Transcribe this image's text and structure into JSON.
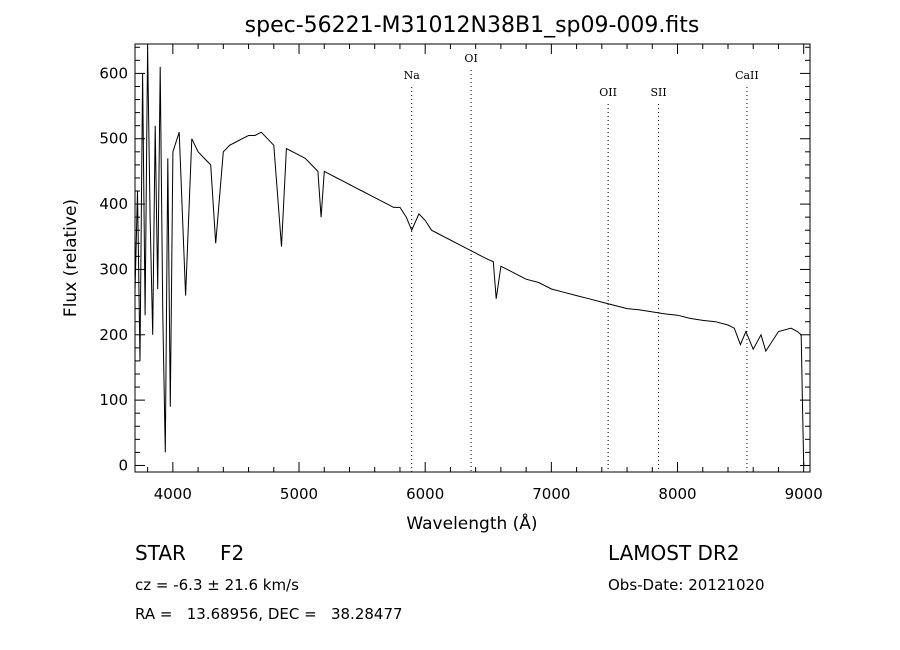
{
  "chart_data": {
    "type": "line",
    "title": "spec-56221-M31012N38B1_sp09-009.fits",
    "xlabel": "Wavelength (Å)",
    "ylabel": "Flux (relative)",
    "xlim": [
      3700,
      9050
    ],
    "ylim": [
      -10,
      645
    ],
    "xticks": [
      4000,
      5000,
      6000,
      7000,
      8000,
      9000
    ],
    "yticks": [
      0,
      100,
      200,
      300,
      400,
      500,
      600
    ],
    "spectral_lines": [
      {
        "name": "Na",
        "wavelength": 5893
      },
      {
        "name": "OI",
        "wavelength": 6364
      },
      {
        "name": "OII",
        "wavelength": 7450
      },
      {
        "name": "SII",
        "wavelength": 7850
      },
      {
        "name": "CaII",
        "wavelength": 8550
      }
    ],
    "spectrum": {
      "name": "flux",
      "x": [
        3700,
        3720,
        3740,
        3760,
        3780,
        3800,
        3820,
        3840,
        3860,
        3880,
        3900,
        3920,
        3940,
        3960,
        3980,
        4000,
        4050,
        4101,
        4150,
        4200,
        4250,
        4300,
        4340,
        4400,
        4450,
        4500,
        4550,
        4600,
        4650,
        4700,
        4750,
        4800,
        4861,
        4900,
        4950,
        5000,
        5050,
        5100,
        5150,
        5175,
        5200,
        5250,
        5300,
        5350,
        5400,
        5450,
        5500,
        5550,
        5600,
        5650,
        5700,
        5750,
        5800,
        5850,
        5893,
        5950,
        6000,
        6050,
        6100,
        6150,
        6200,
        6250,
        6300,
        6350,
        6400,
        6450,
        6500,
        6540,
        6563,
        6600,
        6650,
        6700,
        6800,
        6900,
        7000,
        7100,
        7200,
        7300,
        7400,
        7500,
        7600,
        7700,
        7800,
        7900,
        8000,
        8100,
        8200,
        8300,
        8400,
        8450,
        8498,
        8542,
        8600,
        8662,
        8700,
        8800,
        8900,
        8950,
        8980,
        8990,
        9000
      ],
      "y": [
        265,
        420,
        160,
        600,
        230,
        640,
        380,
        200,
        520,
        270,
        610,
        230,
        20,
        470,
        90,
        480,
        510,
        260,
        500,
        480,
        470,
        460,
        340,
        480,
        490,
        495,
        500,
        505,
        505,
        510,
        500,
        490,
        335,
        485,
        480,
        475,
        470,
        460,
        450,
        380,
        450,
        445,
        440,
        435,
        430,
        425,
        420,
        415,
        410,
        405,
        400,
        395,
        395,
        380,
        360,
        385,
        375,
        360,
        355,
        350,
        345,
        340,
        335,
        330,
        325,
        320,
        315,
        312,
        255,
        305,
        300,
        295,
        285,
        280,
        270,
        265,
        260,
        255,
        250,
        245,
        240,
        238,
        235,
        232,
        230,
        225,
        222,
        220,
        215,
        210,
        185,
        205,
        178,
        200,
        175,
        205,
        210,
        205,
        200,
        100,
        0
      ]
    }
  },
  "info": {
    "object_class": "STAR",
    "subclass": "F2",
    "survey": "LAMOST DR2",
    "cz": "cz = -6.3 ± 21.6 km/s",
    "obs_date": "Obs-Date: 20121020",
    "coords": "RA =   13.68956, DEC =   38.28477"
  }
}
